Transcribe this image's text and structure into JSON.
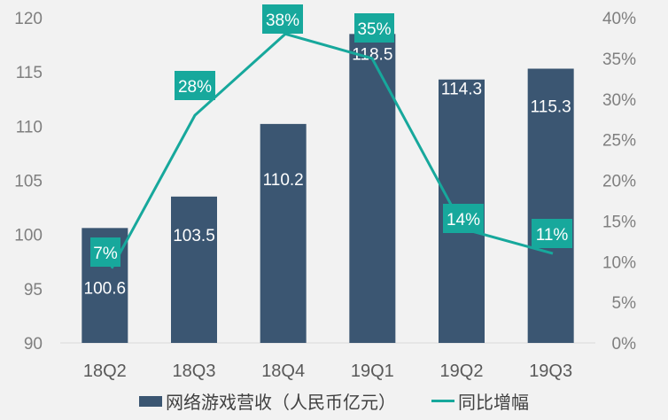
{
  "chart_data": {
    "type": "bar",
    "categories": [
      "18Q2",
      "18Q3",
      "18Q4",
      "19Q1",
      "19Q2",
      "19Q3"
    ],
    "series": [
      {
        "name": "网络游戏营收（人民币亿元）",
        "type": "bar",
        "axis": "left",
        "values": [
          100.6,
          103.5,
          110.2,
          118.5,
          114.3,
          115.3
        ],
        "labels": [
          "100.6",
          "103.5",
          "110.2",
          "118.5",
          "114.3",
          "115.3"
        ]
      },
      {
        "name": "同比增幅",
        "type": "line",
        "axis": "right",
        "values": [
          7,
          28,
          38,
          35,
          14,
          11
        ],
        "labels": [
          "7%",
          "28%",
          "38%",
          "35%",
          "14%",
          "11%"
        ]
      }
    ],
    "left_axis": {
      "ylim": [
        90,
        120
      ],
      "ticks": [
        "90",
        "95",
        "100",
        "105",
        "110",
        "115",
        "120"
      ]
    },
    "right_axis": {
      "ylim": [
        0,
        40
      ],
      "ticks": [
        "0%",
        "5%",
        "10%",
        "15%",
        "20%",
        "25%",
        "30%",
        "35%",
        "40%"
      ]
    },
    "legend_position": "bottom",
    "colors": {
      "bar": "#3b5672",
      "line": "#17a89c",
      "text": "#595959"
    }
  }
}
